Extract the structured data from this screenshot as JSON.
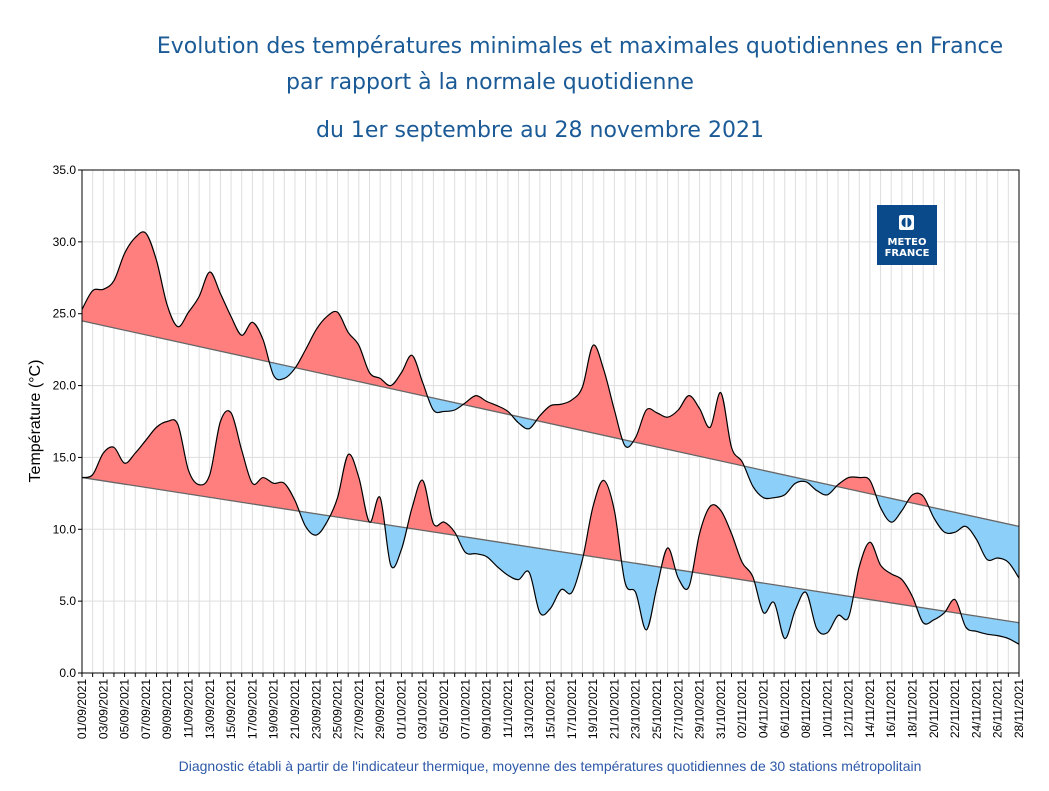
{
  "chart_data": {
    "type": "area",
    "title": [
      "Evolution des températures minimales et maximales quotidiennes en France",
      "par rapport à la normale quotidienne",
      "du 1er septembre au 28 novembre 2021"
    ],
    "ylabel": "Température (°C)",
    "xlabel": "",
    "ylim": [
      0,
      35
    ],
    "y_ticks": [
      "0.0",
      "5.0",
      "10.0",
      "15.0",
      "20.0",
      "25.0",
      "30.0",
      "35.0"
    ],
    "grid": true,
    "colors": {
      "above_normal": "#ff7f7f",
      "below_normal": "#8ccff8",
      "normal_line": "#666666",
      "curve": "#000000",
      "title": "#1a5a96",
      "footer": "#2e59a8",
      "logo": "#0b4a8a"
    },
    "dates": [
      "01/09/2021",
      "02/09/2021",
      "03/09/2021",
      "04/09/2021",
      "05/09/2021",
      "06/09/2021",
      "07/09/2021",
      "08/09/2021",
      "09/09/2021",
      "10/09/2021",
      "11/09/2021",
      "12/09/2021",
      "13/09/2021",
      "14/09/2021",
      "15/09/2021",
      "16/09/2021",
      "17/09/2021",
      "18/09/2021",
      "19/09/2021",
      "20/09/2021",
      "21/09/2021",
      "22/09/2021",
      "23/09/2021",
      "24/09/2021",
      "25/09/2021",
      "26/09/2021",
      "27/09/2021",
      "28/09/2021",
      "29/09/2021",
      "30/09/2021",
      "01/10/2021",
      "02/10/2021",
      "03/10/2021",
      "04/10/2021",
      "05/10/2021",
      "06/10/2021",
      "07/10/2021",
      "08/10/2021",
      "09/10/2021",
      "10/10/2021",
      "11/10/2021",
      "12/10/2021",
      "13/10/2021",
      "14/10/2021",
      "15/10/2021",
      "16/10/2021",
      "17/10/2021",
      "18/10/2021",
      "19/10/2021",
      "20/10/2021",
      "21/10/2021",
      "22/10/2021",
      "23/10/2021",
      "24/10/2021",
      "25/10/2021",
      "26/10/2021",
      "27/10/2021",
      "28/10/2021",
      "29/10/2021",
      "30/10/2021",
      "31/10/2021",
      "01/11/2021",
      "02/11/2021",
      "03/11/2021",
      "04/11/2021",
      "05/11/2021",
      "06/11/2021",
      "07/11/2021",
      "08/11/2021",
      "09/11/2021",
      "10/11/2021",
      "11/11/2021",
      "12/11/2021",
      "13/11/2021",
      "14/11/2021",
      "15/11/2021",
      "16/11/2021",
      "17/11/2021",
      "18/11/2021",
      "19/11/2021",
      "20/11/2021",
      "21/11/2021",
      "22/11/2021",
      "23/11/2021",
      "24/11/2021",
      "25/11/2021",
      "26/11/2021",
      "27/11/2021",
      "28/11/2021"
    ],
    "series": [
      {
        "values": [
          25.3,
          26.6,
          26.7,
          27.3,
          29.2,
          30.3,
          30.6,
          28.7,
          25.6,
          24.1,
          25.1,
          26.2,
          27.9,
          26.4,
          24.8,
          23.5,
          24.4,
          23.2,
          20.7,
          20.5,
          21.2,
          22.5,
          23.9,
          24.8,
          25.1,
          23.7,
          22.8,
          20.9,
          20.5,
          20.0,
          20.9,
          22.1,
          20.2,
          18.3,
          18.2,
          18.3,
          18.8,
          19.3,
          18.9,
          18.6,
          18.2,
          17.4,
          17.0,
          17.9,
          18.6,
          18.7,
          19.0,
          19.9,
          22.8,
          21.1,
          18.3,
          15.8,
          16.4,
          18.3,
          18.1,
          17.8,
          18.3,
          19.3,
          18.4,
          17.1,
          19.5,
          15.7,
          14.7,
          13.0,
          12.2,
          12.2,
          12.4,
          13.2,
          13.3,
          12.7,
          12.4,
          13.1,
          13.6,
          13.6,
          13.4,
          11.5,
          10.5,
          11.3,
          12.4,
          12.3,
          10.8,
          9.8,
          9.8,
          10.2,
          9.3,
          7.9,
          8.0,
          7.7,
          6.6
        ],
        "normal": [
          24.5,
          10.2
        ]
      },
      {
        "values": [
          13.6,
          13.8,
          15.3,
          15.7,
          14.6,
          15.3,
          16.2,
          17.1,
          17.5,
          17.3,
          14.1,
          13.1,
          13.8,
          17.5,
          18.1,
          15.5,
          13.2,
          13.6,
          13.2,
          13.2,
          12.0,
          10.2,
          9.6,
          10.5,
          12.2,
          15.2,
          13.6,
          10.5,
          12.2,
          7.5,
          8.6,
          11.5,
          13.4,
          10.4,
          10.5,
          9.8,
          8.4,
          8.3,
          8.1,
          7.4,
          6.8,
          6.5,
          7.0,
          4.2,
          4.5,
          5.8,
          5.6,
          7.9,
          11.6,
          13.4,
          11.3,
          6.3,
          5.6,
          3.0,
          6.0,
          8.7,
          6.6,
          6.0,
          9.7,
          11.6,
          11.3,
          9.7,
          7.7,
          6.7,
          4.2,
          4.9,
          2.4,
          4.4,
          5.6,
          3.1,
          2.8,
          4.0,
          3.9,
          7.4,
          9.1,
          7.5,
          6.9,
          6.5,
          5.3,
          3.5,
          3.7,
          4.2,
          5.1,
          3.2,
          2.9,
          2.7,
          2.6,
          2.4,
          2.0
        ],
        "normal": [
          13.6,
          3.5
        ]
      }
    ]
  },
  "logo": {
    "line1": "METEO",
    "line2": "FRANCE"
  },
  "footer": "Diagnostic établi à partir de l'indicateur thermique, moyenne des températures quotidiennes de 30 stations métropolitain"
}
